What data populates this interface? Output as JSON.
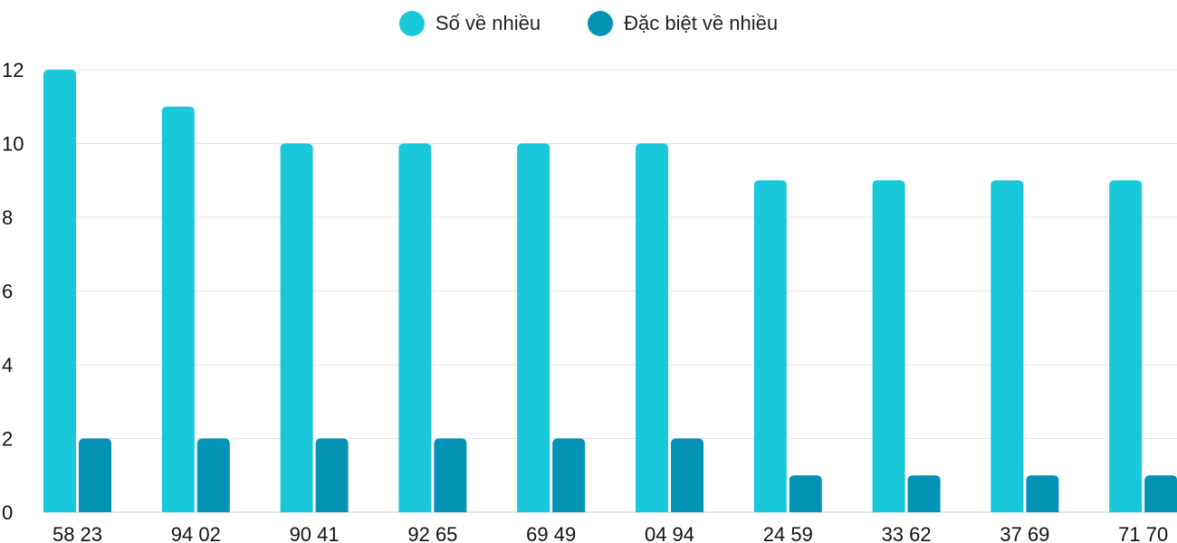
{
  "chart_data": {
    "type": "bar",
    "categories": [
      "58 23",
      "94 02",
      "90 41",
      "92 65",
      "69 49",
      "04 94",
      "24 59",
      "33 62",
      "37 69",
      "71 70"
    ],
    "series": [
      {
        "name": "Số về nhiều",
        "color": "#1ac8db",
        "values": [
          12,
          11,
          10,
          10,
          10,
          10,
          9,
          9,
          9,
          9
        ]
      },
      {
        "name": "Đặc biệt về nhiều",
        "color": "#0492b5",
        "values": [
          2,
          2,
          2,
          2,
          2,
          2,
          1,
          1,
          1,
          1
        ]
      }
    ],
    "ylim": [
      0,
      12
    ],
    "yticks": [
      0,
      2,
      4,
      6,
      8,
      10,
      12
    ],
    "grid": true,
    "legend": "top-center"
  }
}
